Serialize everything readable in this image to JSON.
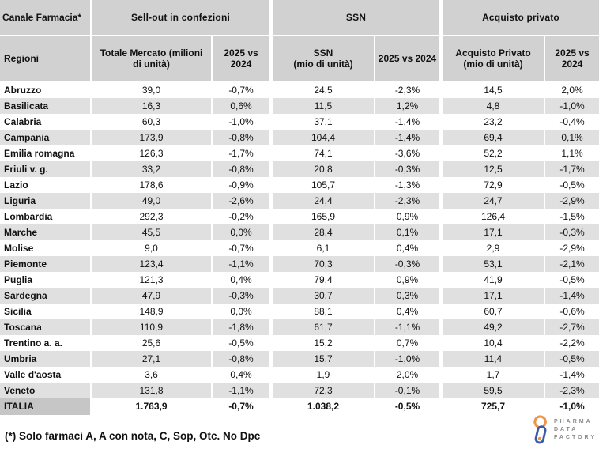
{
  "chart_data": {
    "type": "table",
    "title": "Canale Farmacia*",
    "column_groups": [
      "Sell-out in confezioni",
      "SSN",
      "Acquisto privato"
    ],
    "columns": [
      "Regioni",
      "Totale Mercato (milioni\ndi unità)",
      "2025 vs\n2024",
      "SSN\n(mio di unità)",
      "2025 vs 2024",
      "Acquisto Privato\n(mio di unità)",
      "2025 vs\n2024"
    ],
    "rows": [
      [
        "Abruzzo",
        "39,0",
        "-0,7%",
        "24,5",
        "-2,3%",
        "14,5",
        "2,0%"
      ],
      [
        "Basilicata",
        "16,3",
        "0,6%",
        "11,5",
        "1,2%",
        "4,8",
        "-1,0%"
      ],
      [
        "Calabria",
        "60,3",
        "-1,0%",
        "37,1",
        "-1,4%",
        "23,2",
        "-0,4%"
      ],
      [
        "Campania",
        "173,9",
        "-0,8%",
        "104,4",
        "-1,4%",
        "69,4",
        "0,1%"
      ],
      [
        "Emilia romagna",
        "126,3",
        "-1,7%",
        "74,1",
        "-3,6%",
        "52,2",
        "1,1%"
      ],
      [
        "Friuli v. g.",
        "33,2",
        "-0,8%",
        "20,8",
        "-0,3%",
        "12,5",
        "-1,7%"
      ],
      [
        "Lazio",
        "178,6",
        "-0,9%",
        "105,7",
        "-1,3%",
        "72,9",
        "-0,5%"
      ],
      [
        "Liguria",
        "49,0",
        "-2,6%",
        "24,4",
        "-2,3%",
        "24,7",
        "-2,9%"
      ],
      [
        "Lombardia",
        "292,3",
        "-0,2%",
        "165,9",
        "0,9%",
        "126,4",
        "-1,5%"
      ],
      [
        "Marche",
        "45,5",
        "0,0%",
        "28,4",
        "0,1%",
        "17,1",
        "-0,3%"
      ],
      [
        "Molise",
        "9,0",
        "-0,7%",
        "6,1",
        "0,4%",
        "2,9",
        "-2,9%"
      ],
      [
        "Piemonte",
        "123,4",
        "-1,1%",
        "70,3",
        "-0,3%",
        "53,1",
        "-2,1%"
      ],
      [
        "Puglia",
        "121,3",
        "0,4%",
        "79,4",
        "0,9%",
        "41,9",
        "-0,5%"
      ],
      [
        "Sardegna",
        "47,9",
        "-0,3%",
        "30,7",
        "0,3%",
        "17,1",
        "-1,4%"
      ],
      [
        "Sicilia",
        "148,9",
        "0,0%",
        "88,1",
        "0,4%",
        "60,7",
        "-0,6%"
      ],
      [
        "Toscana",
        "110,9",
        "-1,8%",
        "61,7",
        "-1,1%",
        "49,2",
        "-2,7%"
      ],
      [
        "Trentino a. a.",
        "25,6",
        "-0,5%",
        "15,2",
        "0,7%",
        "10,4",
        "-2,2%"
      ],
      [
        "Umbria",
        "27,1",
        "-0,8%",
        "15,7",
        "-1,0%",
        "11,4",
        "-0,5%"
      ],
      [
        "Valle d'aosta",
        "3,6",
        "0,4%",
        "1,9",
        "2,0%",
        "1,7",
        "-1,4%"
      ],
      [
        "Veneto",
        "131,8",
        "-1,1%",
        "72,3",
        "-0,1%",
        "59,5",
        "-2,3%"
      ]
    ],
    "total": [
      "ITALIA",
      "1.763,9",
      "-0,7%",
      "1.038,2",
      "-0,5%",
      "725,7",
      "-1,0%"
    ]
  },
  "footnote": "(*) Solo farmaci A, A con nota, C, Sop, Otc. No Dpc",
  "logo": {
    "lines": [
      "PHARMA",
      "DATA",
      "FACTORY"
    ]
  },
  "colors": {
    "header_bg": "#d1d1d1",
    "stripe_bg": "#e0e0e0",
    "total_label_bg": "#c6c6c6",
    "logo_orange": "#ef9549",
    "logo_blue": "#3c5ba6",
    "logo_text": "#8a8a8a"
  }
}
